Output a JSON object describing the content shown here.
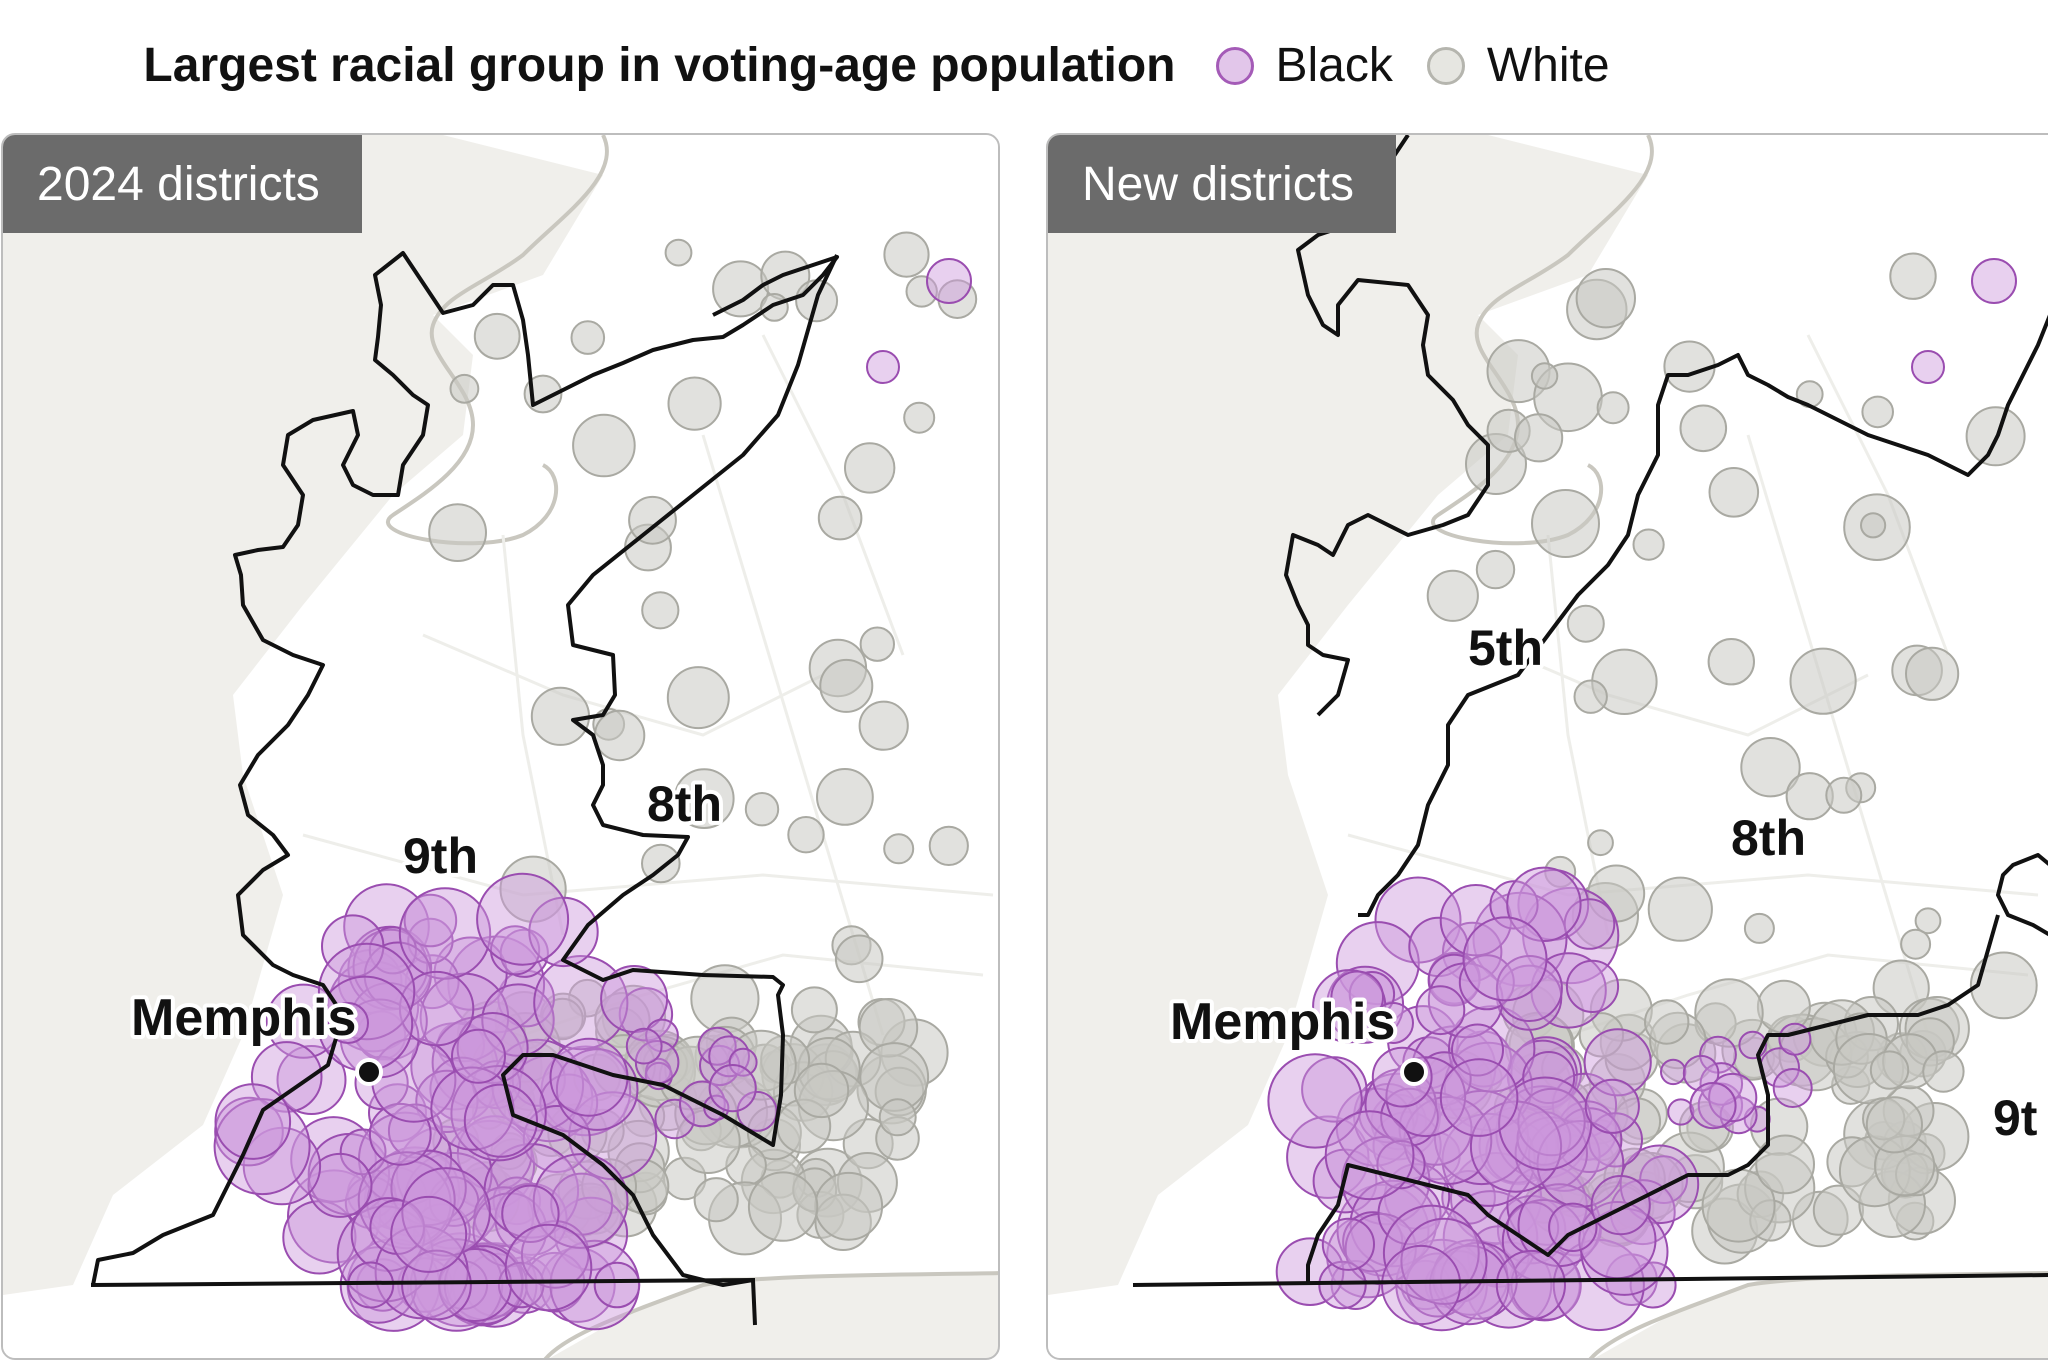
{
  "legend": {
    "title": "Largest racial group in voting-age population",
    "items": [
      {
        "label": "Black",
        "fill": "#e2c6ea",
        "stroke": "#a45bb7"
      },
      {
        "label": "White",
        "fill": "#e6e6e1",
        "stroke": "#b5b5ae"
      }
    ]
  },
  "colors": {
    "land": "#ffffff",
    "water": "#f0efeb",
    "river_edge": "#c9c7bf",
    "district_line": "#111111",
    "black_fill": "rgba(205,150,220,0.45)",
    "black_stroke": "#9a4db0",
    "white_fill": "rgba(200,200,194,0.55)",
    "white_stroke": "#a9a9a2"
  },
  "panels": [
    {
      "id": "left",
      "tag": "2024 districts",
      "city": "Memphis",
      "districts": [
        "9th",
        "8th"
      ]
    },
    {
      "id": "right",
      "tag": "New districts",
      "city": "Memphis",
      "districts": [
        "5th",
        "8th",
        "9t"
      ]
    }
  ]
}
